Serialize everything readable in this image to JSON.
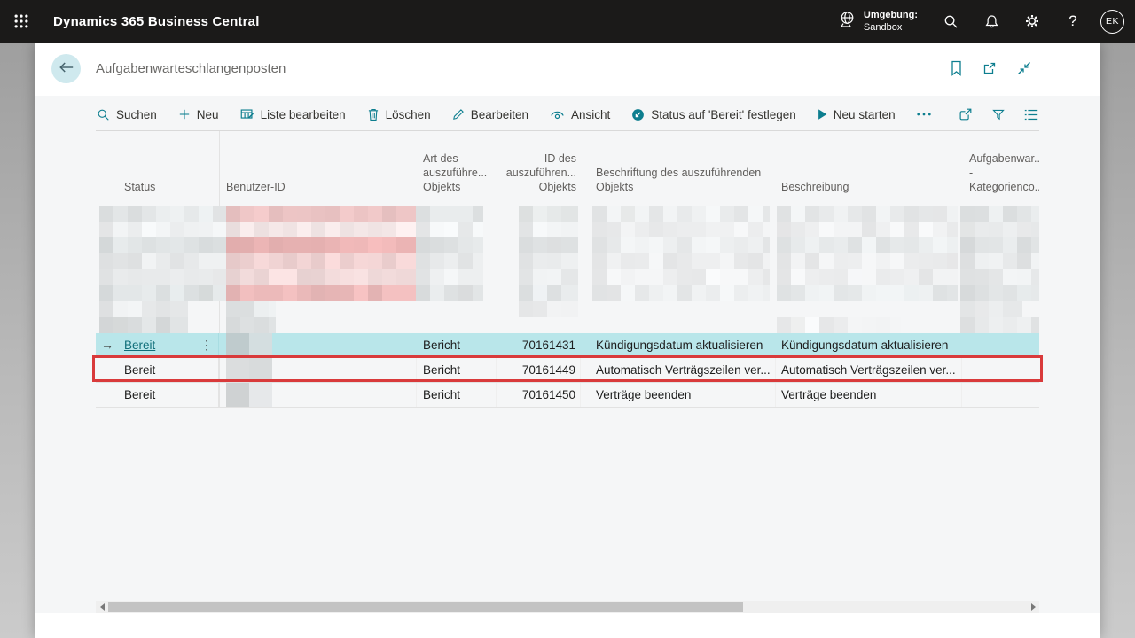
{
  "colors": {
    "accent": "#0d7e8f",
    "topbar": "#1b1a19",
    "selected_row": "#b9e6ea",
    "highlight_border": "#d93a3b"
  },
  "topbar": {
    "app_title": "Dynamics 365 Business Central",
    "environment_label": "Umgebung:",
    "environment_name": "Sandbox",
    "avatar_initials": "EK",
    "icons": [
      "waffle-icon",
      "globe-icon",
      "search-icon",
      "bell-icon",
      "gear-icon",
      "help-icon"
    ]
  },
  "page_header": {
    "title": "Aufgabenwarteschlangenposten",
    "icons": [
      "back-arrow-icon",
      "bookmark-icon",
      "open-in-new-window-icon",
      "collapse-icon"
    ]
  },
  "toolbar": {
    "items": [
      {
        "id": "suchen",
        "label": "Suchen",
        "icon": "search-icon"
      },
      {
        "id": "neu",
        "label": "Neu",
        "icon": "plus-icon"
      },
      {
        "id": "liste-bearbeiten",
        "label": "Liste bearbeiten",
        "icon": "edit-list-icon"
      },
      {
        "id": "loeschen",
        "label": "Löschen",
        "icon": "trash-icon"
      },
      {
        "id": "bearbeiten",
        "label": "Bearbeiten",
        "icon": "pencil-icon"
      },
      {
        "id": "ansicht",
        "label": "Ansicht",
        "icon": "eye-icon"
      },
      {
        "id": "status-bereit",
        "label": "Status auf 'Bereit' festlegen",
        "icon": "status-set-icon"
      },
      {
        "id": "neu-starten",
        "label": "Neu starten",
        "icon": "play-icon"
      },
      {
        "id": "mehr-optionen",
        "label": "",
        "icon": "more-icon"
      }
    ],
    "right_icons": [
      {
        "id": "teilen",
        "icon": "share-icon"
      },
      {
        "id": "filter",
        "icon": "filter-icon"
      },
      {
        "id": "listenansicht",
        "icon": "list-view-icon"
      }
    ]
  },
  "table": {
    "columns": [
      {
        "id": "status",
        "lines": [
          "Status"
        ]
      },
      {
        "id": "benutzer-id",
        "lines": [
          "Benutzer-ID"
        ]
      },
      {
        "id": "art-des-objekts",
        "lines": [
          "Art des",
          "auszuführe...",
          "Objekts"
        ]
      },
      {
        "id": "id-des-objekts",
        "lines": [
          "ID des",
          "auszuführen...",
          "Objekts"
        ]
      },
      {
        "id": "beschriftung",
        "lines": [
          "Beschriftung des auszuführenden",
          "Objekts"
        ]
      },
      {
        "id": "beschreibung",
        "lines": [
          "Beschreibung"
        ]
      },
      {
        "id": "kategoriencode",
        "lines": [
          "Aufgabenwar...",
          "-",
          "Kategorienco..."
        ]
      }
    ],
    "redacted_rows": [
      {
        "segs": [
          [
            4,
            143,
            "#e6e9ea"
          ],
          [
            147,
            214,
            "#f0c8c8"
          ],
          [
            361,
            76,
            "#e8ebec"
          ],
          [
            477,
            67,
            "#e9ecec"
          ],
          [
            560,
            200,
            "#edeff0"
          ],
          [
            768,
            204,
            "#eceeef"
          ],
          [
            975,
            89,
            "#e7eaeb"
          ]
        ]
      },
      {
        "segs": [
          [
            4,
            143,
            "#f0f2f3"
          ],
          [
            147,
            214,
            "#f6e9e9"
          ],
          [
            361,
            76,
            "#f0f2f3"
          ],
          [
            477,
            67,
            "#eef0f1"
          ],
          [
            560,
            200,
            "#f2f3f4"
          ],
          [
            768,
            204,
            "#f1f2f3"
          ],
          [
            975,
            89,
            "#eff1f2"
          ]
        ]
      },
      {
        "segs": [
          [
            4,
            143,
            "#e0e4e5"
          ],
          [
            147,
            214,
            "#eeb7b7"
          ],
          [
            361,
            76,
            "#e3e6e7"
          ],
          [
            477,
            67,
            "#e6e9ea"
          ],
          [
            560,
            200,
            "#eceeef"
          ],
          [
            768,
            204,
            "#eaedee"
          ],
          [
            975,
            89,
            "#e2e5e6"
          ]
        ]
      },
      {
        "segs": [
          [
            4,
            143,
            "#eaeced"
          ],
          [
            147,
            214,
            "#f2d4d4"
          ],
          [
            361,
            76,
            "#ebedee"
          ],
          [
            477,
            67,
            "#eceeef"
          ],
          [
            560,
            200,
            "#f0f1f2"
          ],
          [
            768,
            204,
            "#eff0f1"
          ],
          [
            975,
            89,
            "#e9ebec"
          ]
        ]
      },
      {
        "segs": [
          [
            4,
            143,
            "#eceeef"
          ],
          [
            147,
            214,
            "#f3dcdc"
          ],
          [
            361,
            76,
            "#edeff0"
          ],
          [
            477,
            67,
            "#eef0f1"
          ],
          [
            560,
            200,
            "#f1f2f3"
          ],
          [
            768,
            204,
            "#f0f1f2"
          ],
          [
            975,
            89,
            "#ebedee"
          ]
        ]
      },
      {
        "segs": [
          [
            4,
            143,
            "#e1e5e6"
          ],
          [
            147,
            214,
            "#eebcbc"
          ],
          [
            361,
            76,
            "#e4e7e8"
          ],
          [
            477,
            67,
            "#e7eaeb"
          ],
          [
            560,
            200,
            "#edeff0"
          ],
          [
            768,
            204,
            "#ebeeef"
          ],
          [
            975,
            89,
            "#e3e6e7"
          ]
        ]
      },
      {
        "segs": [
          [
            4,
            100,
            "#eaeced"
          ],
          [
            147,
            56,
            "#e7eaeb"
          ],
          [
            477,
            67,
            "#f1f2f3"
          ],
          [
            975,
            70,
            "#eff1f2"
          ]
        ]
      },
      {
        "segs": [
          [
            4,
            100,
            "#dee1e2"
          ],
          [
            147,
            56,
            "#e3e6e7"
          ],
          [
            768,
            140,
            "#f2f3f4"
          ],
          [
            975,
            89,
            "#e9ebec"
          ]
        ]
      }
    ],
    "rows": [
      {
        "status": "Bereit",
        "selected": true,
        "user_blocks": [
          [
            26,
            "#c9d6d8"
          ],
          [
            26,
            "#d5dfe1"
          ]
        ],
        "object_type": "Bericht",
        "object_id": "70161431",
        "caption": "Kündigungsdatum aktualisieren",
        "description": "Kündigungsdatum aktualisieren"
      },
      {
        "status": "Bereit",
        "highlighted": true,
        "user_blocks": [
          [
            26,
            "#e7e9ea"
          ],
          [
            26,
            "#e2e5e6"
          ]
        ],
        "object_type": "Bericht",
        "object_id": "70161449",
        "caption": "Automatisch Verträgszeilen ver...",
        "description": "Automatisch Verträgszeilen ver..."
      },
      {
        "status": "Bereit",
        "user_blocks": [
          [
            26,
            "#dadddf"
          ],
          [
            26,
            "#e4e6e7"
          ]
        ],
        "object_type": "Bericht",
        "object_id": "70161450",
        "caption": "Verträge beenden",
        "description": "Verträge beenden"
      }
    ]
  }
}
